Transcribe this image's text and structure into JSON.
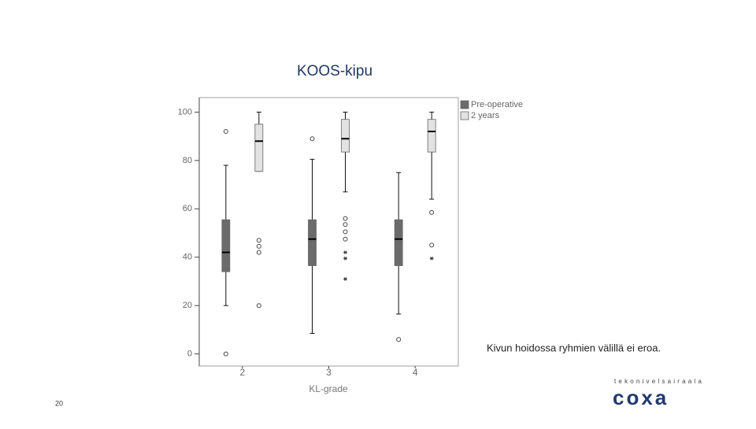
{
  "slide": {
    "annotation": "Kivun hoidossa ryhmien välillä ei eroa.",
    "page_number": "20",
    "logo_tagline": "tekonivelsairaala",
    "logo_name": "coxa"
  },
  "chart_data": {
    "type": "boxplot",
    "title": "KOOS-kipu",
    "x_label": "KL-grade",
    "categories": [
      "2",
      "3",
      "4"
    ],
    "ylim": [
      -5,
      106
    ],
    "yticks": [
      0,
      20,
      40,
      60,
      80,
      100
    ],
    "legend": "right",
    "series": [
      {
        "name": "Pre-operative",
        "color": "#6b6b6b",
        "whisker_low": [
          20,
          8.5,
          16.5
        ],
        "q1": [
          34,
          36.5,
          36.5
        ],
        "median": [
          42,
          47.5,
          47.5
        ],
        "q3": [
          55.5,
          55.5,
          55.5
        ],
        "whisker_high": [
          78,
          80.5,
          75
        ],
        "outliers": [
          [
            92,
            0
          ],
          [
            89
          ],
          [
            6
          ]
        ],
        "extremes": [
          [],
          [],
          []
        ]
      },
      {
        "name": "2 years",
        "color": "#e2e2e2",
        "whisker_low": [
          75.5,
          67,
          64
        ],
        "q1": [
          75.5,
          83.5,
          83.5
        ],
        "median": [
          88,
          89,
          92
        ],
        "q3": [
          95,
          97,
          97
        ],
        "whisker_high": [
          100,
          100,
          100
        ],
        "outliers": [
          [
            47,
            44.5,
            42,
            20
          ],
          [
            56,
            53.5,
            50.5,
            47.5
          ],
          [
            58.5,
            45
          ]
        ],
        "extremes": [
          [],
          [
            42,
            39.5,
            31
          ],
          [
            39.5
          ]
        ]
      }
    ]
  }
}
